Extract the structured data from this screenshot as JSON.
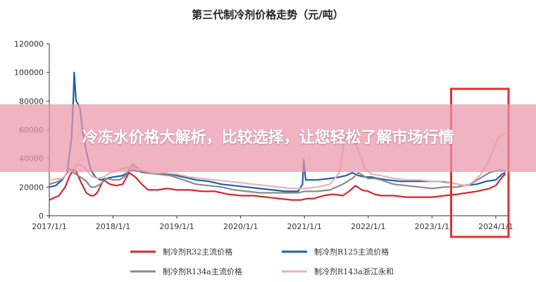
{
  "overlay": {
    "headline": "冷冻水价格大解析，比较选择，让您轻松了解市场行情"
  },
  "chart_data": {
    "type": "line",
    "title": "第三代制冷剂价格走势（元/吨）",
    "xlabel": "",
    "ylabel": "",
    "ylim": [
      0,
      120000
    ],
    "xlim": [
      2017.0,
      2024.2
    ],
    "y_ticks": [
      "0",
      "20000",
      "40000",
      "60000",
      "80000",
      "100000",
      "120000"
    ],
    "x_ticks": [
      "2017/1/1",
      "2018/1/1",
      "2019/1/1",
      "2020/1/1",
      "2021/1/1",
      "2022/1/1",
      "2023/1/1",
      "2024/1/1"
    ],
    "grid": false,
    "legend_position": "bottom",
    "highlight": {
      "x_range": [
        2023.3,
        2024.2
      ],
      "color": "#e03030"
    },
    "series": [
      {
        "name": "制冷剂R32主流价格",
        "color": "#d8262e",
        "x": [
          2017.0,
          2017.15,
          2017.25,
          2017.32,
          2017.38,
          2017.42,
          2017.5,
          2017.58,
          2017.65,
          2017.7,
          2017.75,
          2017.85,
          2017.95,
          2018.05,
          2018.15,
          2018.25,
          2018.35,
          2018.45,
          2018.55,
          2018.7,
          2018.85,
          2019.0,
          2019.2,
          2019.4,
          2019.6,
          2019.8,
          2020.0,
          2020.2,
          2020.4,
          2020.6,
          2020.8,
          2020.95,
          2021.05,
          2021.15,
          2021.3,
          2021.45,
          2021.6,
          2021.7,
          2021.8,
          2021.9,
          2022.0,
          2022.1,
          2022.2,
          2022.4,
          2022.6,
          2022.8,
          2023.0,
          2023.2,
          2023.4,
          2023.55,
          2023.7,
          2023.8,
          2023.9,
          2024.0,
          2024.1,
          2024.15
        ],
        "y": [
          11000,
          14000,
          20000,
          28000,
          32000,
          31000,
          23000,
          16000,
          14000,
          14000,
          16000,
          25000,
          22000,
          21000,
          22000,
          30000,
          27000,
          22000,
          18000,
          18000,
          19000,
          18000,
          18000,
          17000,
          17000,
          15000,
          14000,
          14000,
          13000,
          12000,
          11000,
          11000,
          12000,
          12000,
          14000,
          15000,
          14000,
          17000,
          21000,
          18000,
          17000,
          15000,
          14000,
          14000,
          13000,
          13000,
          13000,
          14000,
          15000,
          16000,
          17000,
          18000,
          19000,
          21000,
          27000,
          29000
        ]
      },
      {
        "name": "制冷剂R125主流价格",
        "color": "#1f5fa8",
        "x": [
          2017.0,
          2017.1,
          2017.2,
          2017.28,
          2017.35,
          2017.38,
          2017.39,
          2017.42,
          2017.45,
          2017.48,
          2017.52,
          2017.58,
          2017.65,
          2017.72,
          2017.8,
          2017.9,
          2018.0,
          2018.15,
          2018.3,
          2018.5,
          2018.7,
          2018.9,
          2019.1,
          2019.3,
          2019.5,
          2019.7,
          2019.9,
          2020.1,
          2020.3,
          2020.5,
          2020.7,
          2020.9,
          2020.97,
          2020.99,
          2021.02,
          2021.2,
          2021.4,
          2021.55,
          2021.65,
          2021.75,
          2021.85,
          2021.95,
          2022.05,
          2022.15,
          2022.3,
          2022.5,
          2022.7,
          2022.9,
          2023.1,
          2023.3,
          2023.5,
          2023.7,
          2023.85,
          2024.0,
          2024.1,
          2024.15
        ],
        "y": [
          20000,
          21000,
          25000,
          30000,
          55000,
          85000,
          100000,
          80000,
          78000,
          75000,
          60000,
          45000,
          32000,
          27000,
          25000,
          26000,
          27000,
          28000,
          32000,
          30000,
          30000,
          29000,
          27000,
          25000,
          24000,
          22000,
          21000,
          20000,
          19000,
          18000,
          17000,
          17000,
          22000,
          39000,
          25000,
          25000,
          26000,
          27000,
          28000,
          30000,
          28000,
          27000,
          27000,
          26000,
          25000,
          24000,
          24000,
          24000,
          24000,
          23000,
          21000,
          22000,
          24000,
          25000,
          29000,
          30000
        ]
      },
      {
        "name": "制冷剂R134a主流价格",
        "color": "#8a8a8a",
        "x": [
          2017.0,
          2017.15,
          2017.25,
          2017.32,
          2017.38,
          2017.45,
          2017.52,
          2017.58,
          2017.65,
          2017.72,
          2017.8,
          2017.9,
          2018.0,
          2018.1,
          2018.2,
          2018.3,
          2018.4,
          2018.5,
          2018.7,
          2018.9,
          2019.1,
          2019.3,
          2019.5,
          2019.7,
          2019.9,
          2020.1,
          2020.3,
          2020.5,
          2020.7,
          2020.9,
          2021.0,
          2021.2,
          2021.4,
          2021.6,
          2021.75,
          2021.85,
          2021.92,
          2022.0,
          2022.1,
          2022.2,
          2022.4,
          2022.6,
          2022.8,
          2023.0,
          2023.2,
          2023.4,
          2023.6,
          2023.75,
          2023.9,
          2024.05,
          2024.15
        ],
        "y": [
          22000,
          24000,
          28000,
          33000,
          30000,
          28000,
          26000,
          24000,
          20000,
          20000,
          22000,
          26000,
          25000,
          25000,
          28000,
          36000,
          33000,
          30000,
          29000,
          28000,
          25000,
          22000,
          21000,
          20000,
          18000,
          17000,
          16000,
          16000,
          16000,
          16000,
          17000,
          17000,
          18000,
          22000,
          26000,
          30000,
          28000,
          26000,
          26000,
          25000,
          22000,
          21000,
          20000,
          19000,
          20000,
          20000,
          22000,
          26000,
          30000,
          32000,
          31000
        ]
      },
      {
        "name": "制冷剂R143a浙江永和",
        "color": "#e8b4b8",
        "x": [
          2017.0,
          2017.2,
          2017.35,
          2017.45,
          2017.55,
          2017.65,
          2017.75,
          2017.85,
          2017.95,
          2018.05,
          2018.15,
          2018.3,
          2018.45,
          2018.6,
          2018.8,
          2019.0,
          2019.2,
          2019.4,
          2019.6,
          2019.8,
          2020.0,
          2020.2,
          2020.4,
          2020.6,
          2020.8,
          2021.0,
          2021.2,
          2021.4,
          2021.55,
          2021.62,
          2021.68,
          2021.75,
          2021.85,
          2021.95,
          2022.05,
          2022.2,
          2022.4,
          2022.6,
          2022.8,
          2023.0,
          2023.2,
          2023.4,
          2023.55,
          2023.65,
          2023.75,
          2023.85,
          2023.95,
          2024.05,
          2024.15
        ],
        "y": [
          25000,
          26000,
          32000,
          36000,
          34000,
          28000,
          26000,
          27000,
          30000,
          31000,
          33000,
          34000,
          32000,
          30000,
          30000,
          29000,
          27000,
          26000,
          25000,
          24000,
          23000,
          22000,
          21000,
          20000,
          19000,
          19000,
          20000,
          22000,
          30000,
          52000,
          58000,
          57000,
          45000,
          33000,
          29000,
          28000,
          26000,
          25000,
          25000,
          24000,
          24000,
          22000,
          21000,
          24000,
          28000,
          35000,
          45000,
          55000,
          58000
        ]
      }
    ]
  }
}
